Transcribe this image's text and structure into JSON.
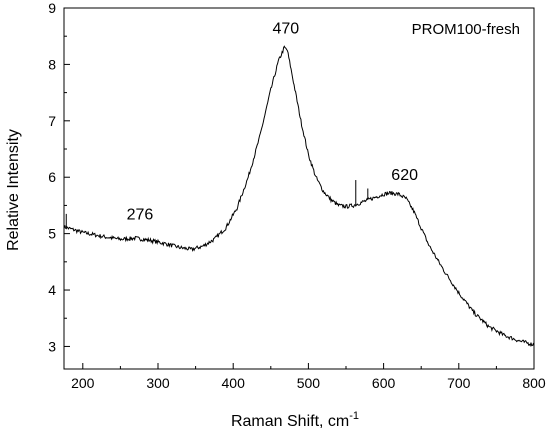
{
  "chart_data": {
    "type": "line",
    "title": "",
    "legend": "PROM100-fresh",
    "xlabel": "Raman Shift, cm",
    "xlabel_sup": "-1",
    "ylabel": "Relative Intensity",
    "xlim": [
      175,
      800
    ],
    "ylim": [
      2.6,
      9
    ],
    "xticks": [
      200,
      300,
      400,
      500,
      600,
      700,
      800
    ],
    "yticks": [
      3,
      4,
      5,
      6,
      7,
      8,
      9
    ],
    "grid": false,
    "series": [
      {
        "name": "PROM100-fresh",
        "x": [
          175,
          190,
          200,
          215,
          230,
          250,
          270,
          290,
          310,
          330,
          345,
          360,
          375,
          390,
          405,
          420,
          435,
          450,
          460,
          468,
          472,
          480,
          490,
          500,
          510,
          520,
          530,
          540,
          550,
          560,
          570,
          580,
          590,
          600,
          610,
          620,
          630,
          640,
          650,
          660,
          680,
          700,
          720,
          740,
          760,
          780,
          800
        ],
        "y": [
          5.12,
          5.06,
          5.02,
          4.98,
          4.94,
          4.9,
          4.92,
          4.88,
          4.82,
          4.75,
          4.72,
          4.78,
          4.9,
          5.1,
          5.45,
          6.0,
          6.7,
          7.55,
          8.05,
          8.3,
          8.25,
          7.7,
          7.0,
          6.4,
          6.0,
          5.75,
          5.6,
          5.5,
          5.48,
          5.5,
          5.55,
          5.6,
          5.65,
          5.7,
          5.72,
          5.7,
          5.62,
          5.4,
          5.1,
          4.8,
          4.35,
          3.95,
          3.6,
          3.35,
          3.2,
          3.1,
          3.03
        ]
      }
    ],
    "spikes": [
      {
        "x": 178,
        "y": 5.35
      },
      {
        "x": 563,
        "y": 5.95
      },
      {
        "x": 579,
        "y": 5.8
      }
    ],
    "annotations": [
      {
        "text": "276",
        "x": 276,
        "y": 5.25
      },
      {
        "text": "470",
        "x": 470,
        "y": 8.55
      },
      {
        "text": "620",
        "x": 628,
        "y": 5.95
      }
    ]
  }
}
